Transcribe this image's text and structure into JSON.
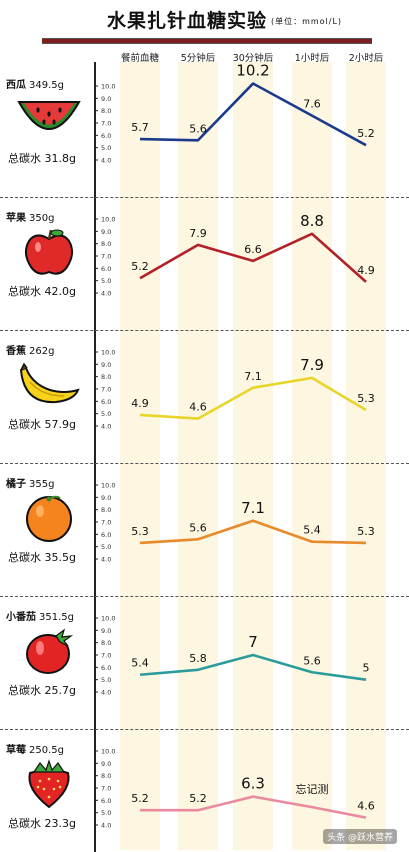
{
  "title": "水果扎针血糖实验",
  "unit": "(单位：mmol/L)",
  "credit": "头条 @跃水营养",
  "chart_data": {
    "type": "line",
    "title": "水果扎针血糖实验",
    "categories": [
      "餐前血糖",
      "5分钟后",
      "30分钟后",
      "1小时后",
      "2小时后"
    ],
    "ylim": [
      4.0,
      10.0
    ],
    "yticks": [
      "10.0",
      "9.0",
      "8.0",
      "7.0",
      "6.0",
      "5.0",
      "4.0"
    ],
    "series": [
      {
        "name": "西瓜",
        "weight": "349.5g",
        "carb_label": "总碳水 31.8g",
        "color": "#1a3a8c",
        "values": [
          5.7,
          5.6,
          10.2,
          7.6,
          5.2
        ],
        "labels": [
          "5.7",
          "5.6",
          "10.2",
          "7.6",
          "5.2"
        ]
      },
      {
        "name": "苹果",
        "weight": "350g",
        "carb_label": "总碳水 42.0g",
        "color": "#b3202a",
        "values": [
          5.2,
          7.9,
          6.6,
          8.8,
          4.9
        ],
        "labels": [
          "5.2",
          "7.9",
          "6.6",
          "8.8",
          "4.9"
        ]
      },
      {
        "name": "香蕉",
        "weight": "262g",
        "carb_label": "总碳水 57.9g",
        "color": "#e8d52a",
        "values": [
          4.9,
          4.6,
          7.1,
          7.9,
          5.3
        ],
        "labels": [
          "4.9",
          "4.6",
          "7.1",
          "7.9",
          "5.3"
        ]
      },
      {
        "name": "橘子",
        "weight": "355g",
        "carb_label": "总碳水 35.5g",
        "color": "#e8892a",
        "values": [
          5.3,
          5.6,
          7.1,
          5.4,
          5.3
        ],
        "labels": [
          "5.3",
          "5.6",
          "7.1",
          "5.4",
          "5.3"
        ]
      },
      {
        "name": "小番茄",
        "weight": "351.5g",
        "carb_label": "总碳水 25.7g",
        "color": "#2a9c9c",
        "values": [
          5.4,
          5.8,
          7.0,
          5.6,
          5.0
        ],
        "labels": [
          "5.4",
          "5.8",
          "7",
          "5.6",
          "5"
        ]
      },
      {
        "name": "草莓",
        "weight": "250.5g",
        "carb_label": "总碳水 23.3g",
        "color": "#e98aa0",
        "values": [
          5.2,
          5.2,
          6.3,
          null,
          4.6
        ],
        "labels": [
          "5.2",
          "5.2",
          "6.3",
          "忘记测",
          "4.6"
        ]
      }
    ]
  }
}
